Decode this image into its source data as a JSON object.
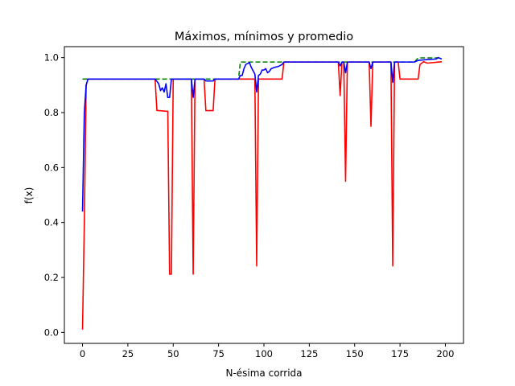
{
  "chart_data": {
    "type": "line",
    "title": "Máximos, mínimos y promedio",
    "xlabel": "N-ésima corrida",
    "ylabel": "f(x)",
    "xlim": [
      -10,
      210
    ],
    "ylim": [
      -0.04,
      1.04
    ],
    "xticks": [
      0,
      25,
      50,
      75,
      100,
      125,
      150,
      175,
      200
    ],
    "yticks": [
      0.0,
      0.2,
      0.4,
      0.6,
      0.8,
      1.0
    ],
    "ytick_labels": [
      "0.0",
      "0.2",
      "0.4",
      "0.6",
      "0.8",
      "1.0"
    ],
    "grid": false,
    "legend": "none",
    "series": [
      {
        "color": "#008000",
        "style": "dashed",
        "points": [
          [
            0,
            0.922
          ],
          [
            86,
            0.922
          ],
          [
            87,
            0.984
          ],
          [
            183,
            0.984
          ],
          [
            185,
            0.999
          ],
          [
            198,
            0.999
          ]
        ]
      },
      {
        "color": "#ff0000",
        "style": "solid",
        "points": [
          [
            0,
            0.01
          ],
          [
            1,
            0.4
          ],
          [
            2,
            0.9
          ],
          [
            3,
            0.922
          ],
          [
            40,
            0.922
          ],
          [
            41,
            0.808
          ],
          [
            46,
            0.805
          ],
          [
            47,
            0.805
          ],
          [
            48,
            0.212
          ],
          [
            49,
            0.212
          ],
          [
            50,
            0.922
          ],
          [
            60,
            0.922
          ],
          [
            61,
            0.212
          ],
          [
            62,
            0.922
          ],
          [
            67,
            0.922
          ],
          [
            68,
            0.807
          ],
          [
            72,
            0.807
          ],
          [
            73,
            0.922
          ],
          [
            95,
            0.922
          ],
          [
            96,
            0.242
          ],
          [
            97,
            0.922
          ],
          [
            110,
            0.922
          ],
          [
            111,
            0.984
          ],
          [
            141,
            0.984
          ],
          [
            142,
            0.862
          ],
          [
            143,
            0.984
          ],
          [
            144,
            0.984
          ],
          [
            145,
            0.55
          ],
          [
            146,
            0.984
          ],
          [
            158,
            0.984
          ],
          [
            159,
            0.75
          ],
          [
            160,
            0.984
          ],
          [
            170,
            0.984
          ],
          [
            171,
            0.242
          ],
          [
            172,
            0.984
          ],
          [
            174,
            0.984
          ],
          [
            175,
            0.922
          ],
          [
            185,
            0.922
          ],
          [
            186,
            0.975
          ],
          [
            188,
            0.985
          ],
          [
            190,
            0.98
          ],
          [
            198,
            0.985
          ]
        ]
      },
      {
        "color": "#0000ff",
        "style": "solid",
        "points": [
          [
            0,
            0.44
          ],
          [
            1,
            0.8
          ],
          [
            2,
            0.9
          ],
          [
            3,
            0.922
          ],
          [
            40,
            0.922
          ],
          [
            42,
            0.905
          ],
          [
            43,
            0.88
          ],
          [
            44,
            0.89
          ],
          [
            45,
            0.875
          ],
          [
            46,
            0.905
          ],
          [
            47,
            0.855
          ],
          [
            48,
            0.855
          ],
          [
            49,
            0.922
          ],
          [
            60,
            0.922
          ],
          [
            61,
            0.855
          ],
          [
            62,
            0.922
          ],
          [
            67,
            0.922
          ],
          [
            68,
            0.915
          ],
          [
            72,
            0.915
          ],
          [
            73,
            0.922
          ],
          [
            86,
            0.922
          ],
          [
            87,
            0.935
          ],
          [
            88,
            0.935
          ],
          [
            89,
            0.96
          ],
          [
            90,
            0.975
          ],
          [
            92,
            0.982
          ],
          [
            93,
            0.965
          ],
          [
            95,
            0.94
          ],
          [
            96,
            0.875
          ],
          [
            97,
            0.935
          ],
          [
            98,
            0.94
          ],
          [
            99,
            0.955
          ],
          [
            100,
            0.955
          ],
          [
            101,
            0.96
          ],
          [
            102,
            0.945
          ],
          [
            103,
            0.95
          ],
          [
            104,
            0.96
          ],
          [
            106,
            0.965
          ],
          [
            108,
            0.968
          ],
          [
            110,
            0.975
          ],
          [
            111,
            0.984
          ],
          [
            141,
            0.984
          ],
          [
            142,
            0.97
          ],
          [
            143,
            0.984
          ],
          [
            144,
            0.984
          ],
          [
            145,
            0.945
          ],
          [
            146,
            0.984
          ],
          [
            158,
            0.984
          ],
          [
            159,
            0.96
          ],
          [
            160,
            0.984
          ],
          [
            170,
            0.984
          ],
          [
            171,
            0.91
          ],
          [
            172,
            0.984
          ],
          [
            183,
            0.984
          ],
          [
            185,
            0.99
          ],
          [
            190,
            0.993
          ],
          [
            195,
            0.995
          ],
          [
            196,
            1.0
          ],
          [
            198,
            0.995
          ]
        ]
      }
    ]
  }
}
